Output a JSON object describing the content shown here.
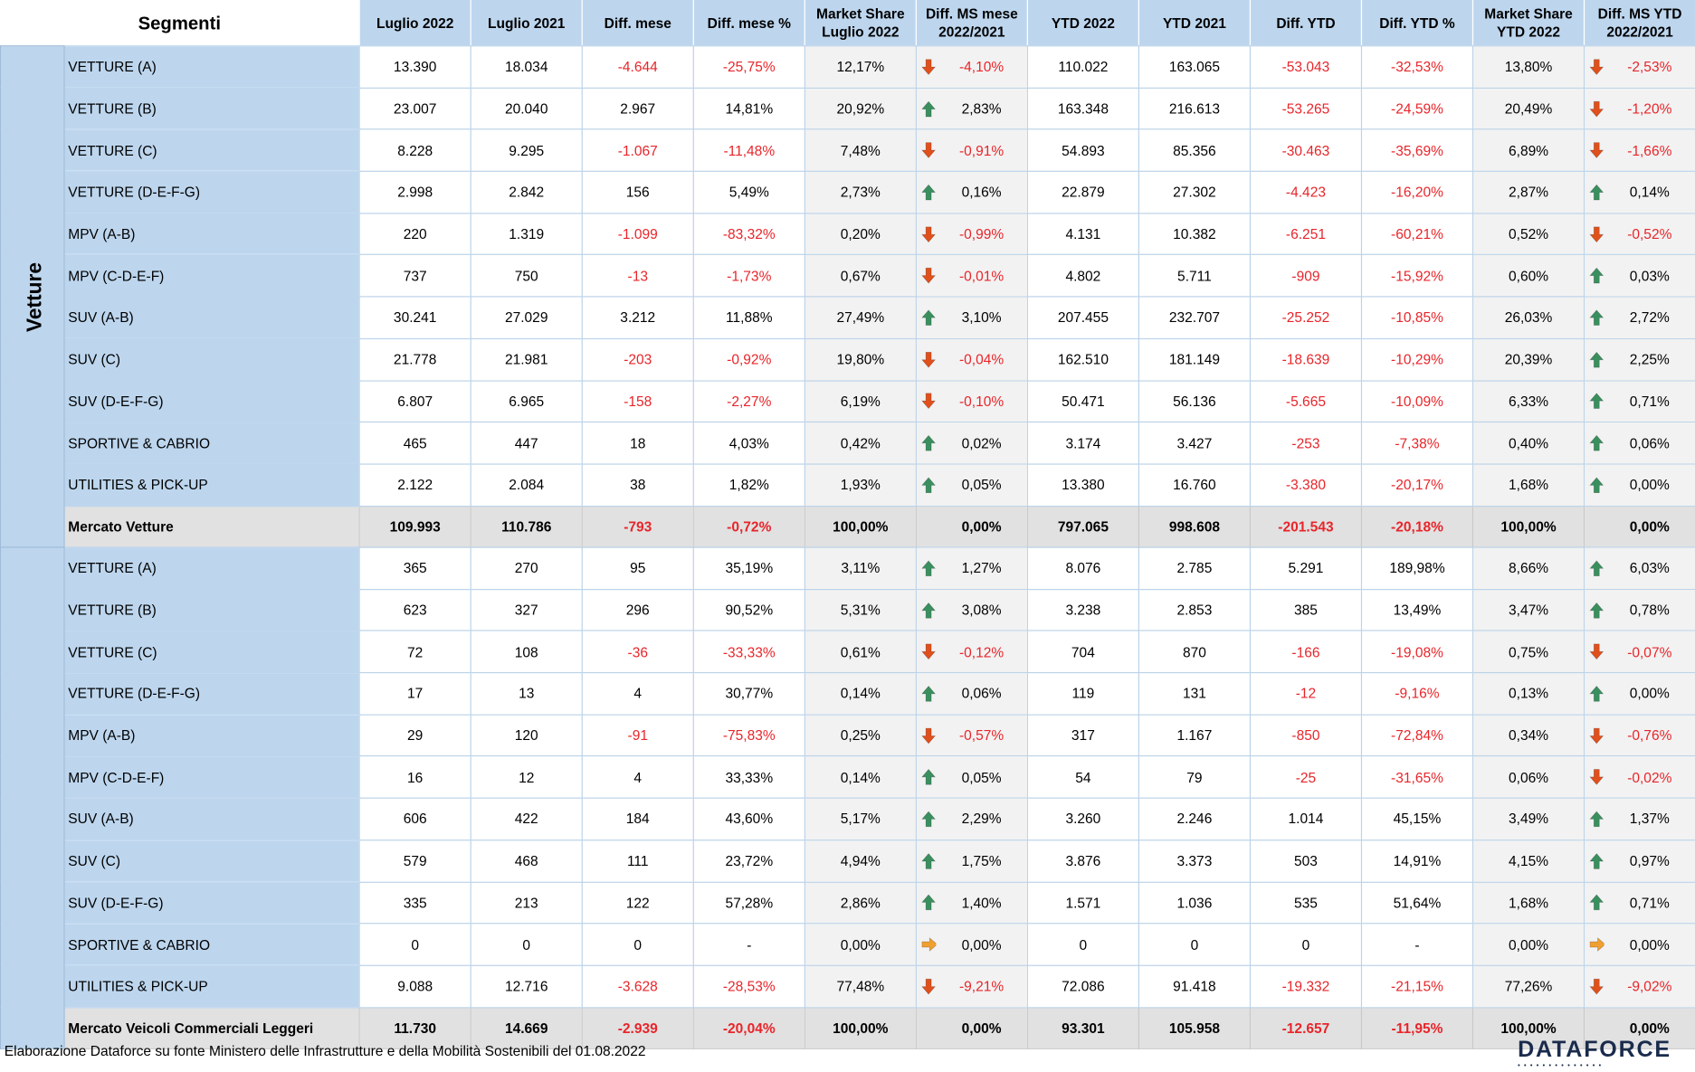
{
  "header": {
    "segment": "Segmenti",
    "columns": [
      "Luglio 2022",
      "Luglio 2021",
      "Diff. mese",
      "Diff. mese %",
      "Market Share\nLuglio 2022",
      "Diff. MS mese\n2022/2021",
      "YTD 2022",
      "YTD 2021",
      "Diff. YTD",
      "Diff. YTD %",
      "Market Share\nYTD 2022",
      "Diff. MS YTD\n2022/2021"
    ]
  },
  "colors": {
    "header_bg": "#bdd6ee",
    "negative": "#e8252a",
    "arrow_up": "#3a8f5f",
    "arrow_down": "#e0501c",
    "arrow_flat": "#f0a030",
    "total_bg": "#e1e1e1"
  },
  "groups": [
    {
      "name": "Vetture",
      "rows": [
        [
          "VETTURE (A)",
          "13.390",
          "18.034",
          "-4.644",
          "-25,75%",
          "12,17%",
          "down",
          "-4,10%",
          "110.022",
          "163.065",
          "-53.043",
          "-32,53%",
          "13,80%",
          "down",
          "-2,53%"
        ],
        [
          "VETTURE (B)",
          "23.007",
          "20.040",
          "2.967",
          "14,81%",
          "20,92%",
          "up",
          "2,83%",
          "163.348",
          "216.613",
          "-53.265",
          "-24,59%",
          "20,49%",
          "down",
          "-1,20%"
        ],
        [
          "VETTURE (C)",
          "8.228",
          "9.295",
          "-1.067",
          "-11,48%",
          "7,48%",
          "down",
          "-0,91%",
          "54.893",
          "85.356",
          "-30.463",
          "-35,69%",
          "6,89%",
          "down",
          "-1,66%"
        ],
        [
          "VETTURE (D-E-F-G)",
          "2.998",
          "2.842",
          "156",
          "5,49%",
          "2,73%",
          "up",
          "0,16%",
          "22.879",
          "27.302",
          "-4.423",
          "-16,20%",
          "2,87%",
          "up",
          "0,14%"
        ],
        [
          "MPV (A-B)",
          "220",
          "1.319",
          "-1.099",
          "-83,32%",
          "0,20%",
          "down",
          "-0,99%",
          "4.131",
          "10.382",
          "-6.251",
          "-60,21%",
          "0,52%",
          "down",
          "-0,52%"
        ],
        [
          "MPV (C-D-E-F)",
          "737",
          "750",
          "-13",
          "-1,73%",
          "0,67%",
          "down",
          "-0,01%",
          "4.802",
          "5.711",
          "-909",
          "-15,92%",
          "0,60%",
          "up",
          "0,03%"
        ],
        [
          "SUV (A-B)",
          "30.241",
          "27.029",
          "3.212",
          "11,88%",
          "27,49%",
          "up",
          "3,10%",
          "207.455",
          "232.707",
          "-25.252",
          "-10,85%",
          "26,03%",
          "up",
          "2,72%"
        ],
        [
          "SUV (C)",
          "21.778",
          "21.981",
          "-203",
          "-0,92%",
          "19,80%",
          "down",
          "-0,04%",
          "162.510",
          "181.149",
          "-18.639",
          "-10,29%",
          "20,39%",
          "up",
          "2,25%"
        ],
        [
          "SUV (D-E-F-G)",
          "6.807",
          "6.965",
          "-158",
          "-2,27%",
          "6,19%",
          "down",
          "-0,10%",
          "50.471",
          "56.136",
          "-5.665",
          "-10,09%",
          "6,33%",
          "up",
          "0,71%"
        ],
        [
          "SPORTIVE & CABRIO",
          "465",
          "447",
          "18",
          "4,03%",
          "0,42%",
          "up",
          "0,02%",
          "3.174",
          "3.427",
          "-253",
          "-7,38%",
          "0,40%",
          "up",
          "0,06%"
        ],
        [
          "UTILITIES & PICK-UP",
          "2.122",
          "2.084",
          "38",
          "1,82%",
          "1,93%",
          "up",
          "0,05%",
          "13.380",
          "16.760",
          "-3.380",
          "-20,17%",
          "1,68%",
          "up",
          "0,00%"
        ]
      ],
      "total": [
        "Mercato Vetture",
        "109.993",
        "110.786",
        "-793",
        "-0,72%",
        "100,00%",
        "",
        "0,00%",
        "797.065",
        "998.608",
        "-201.543",
        "-20,18%",
        "100,00%",
        "",
        "0,00%"
      ]
    },
    {
      "name": "Veicoli Commerciali Leggeri",
      "rows": [
        [
          "VETTURE (A)",
          "365",
          "270",
          "95",
          "35,19%",
          "3,11%",
          "up",
          "1,27%",
          "8.076",
          "2.785",
          "5.291",
          "189,98%",
          "8,66%",
          "up",
          "6,03%"
        ],
        [
          "VETTURE (B)",
          "623",
          "327",
          "296",
          "90,52%",
          "5,31%",
          "up",
          "3,08%",
          "3.238",
          "2.853",
          "385",
          "13,49%",
          "3,47%",
          "up",
          "0,78%"
        ],
        [
          "VETTURE (C)",
          "72",
          "108",
          "-36",
          "-33,33%",
          "0,61%",
          "down",
          "-0,12%",
          "704",
          "870",
          "-166",
          "-19,08%",
          "0,75%",
          "down",
          "-0,07%"
        ],
        [
          "VETTURE (D-E-F-G)",
          "17",
          "13",
          "4",
          "30,77%",
          "0,14%",
          "up",
          "0,06%",
          "119",
          "131",
          "-12",
          "-9,16%",
          "0,13%",
          "up",
          "0,00%"
        ],
        [
          "MPV (A-B)",
          "29",
          "120",
          "-91",
          "-75,83%",
          "0,25%",
          "down",
          "-0,57%",
          "317",
          "1.167",
          "-850",
          "-72,84%",
          "0,34%",
          "down",
          "-0,76%"
        ],
        [
          "MPV (C-D-E-F)",
          "16",
          "12",
          "4",
          "33,33%",
          "0,14%",
          "up",
          "0,05%",
          "54",
          "79",
          "-25",
          "-31,65%",
          "0,06%",
          "down",
          "-0,02%"
        ],
        [
          "SUV (A-B)",
          "606",
          "422",
          "184",
          "43,60%",
          "5,17%",
          "up",
          "2,29%",
          "3.260",
          "2.246",
          "1.014",
          "45,15%",
          "3,49%",
          "up",
          "1,37%"
        ],
        [
          "SUV (C)",
          "579",
          "468",
          "111",
          "23,72%",
          "4,94%",
          "up",
          "1,75%",
          "3.876",
          "3.373",
          "503",
          "14,91%",
          "4,15%",
          "up",
          "0,97%"
        ],
        [
          "SUV (D-E-F-G)",
          "335",
          "213",
          "122",
          "57,28%",
          "2,86%",
          "up",
          "1,40%",
          "1.571",
          "1.036",
          "535",
          "51,64%",
          "1,68%",
          "up",
          "0,71%"
        ],
        [
          "SPORTIVE & CABRIO",
          "0",
          "0",
          "0",
          "-",
          "0,00%",
          "flat",
          "0,00%",
          "0",
          "0",
          "0",
          "-",
          "0,00%",
          "flat",
          "0,00%"
        ],
        [
          "UTILITIES & PICK-UP",
          "9.088",
          "12.716",
          "-3.628",
          "-28,53%",
          "77,48%",
          "down",
          "-9,21%",
          "72.086",
          "91.418",
          "-19.332",
          "-21,15%",
          "77,26%",
          "down",
          "-9,02%"
        ]
      ],
      "total": [
        "Mercato Veicoli Commerciali Leggeri",
        "11.730",
        "14.669",
        "-2.939",
        "-20,04%",
        "100,00%",
        "",
        "0,00%",
        "93.301",
        "105.958",
        "-12.657",
        "-11,95%",
        "100,00%",
        "",
        "0,00%"
      ]
    }
  ],
  "footer": {
    "source": "Elaborazione Dataforce su fonte Ministero delle Infrastrutture e della Mobilità Sostenibili del 01.08.2022",
    "logo": "DATAFORCE"
  }
}
